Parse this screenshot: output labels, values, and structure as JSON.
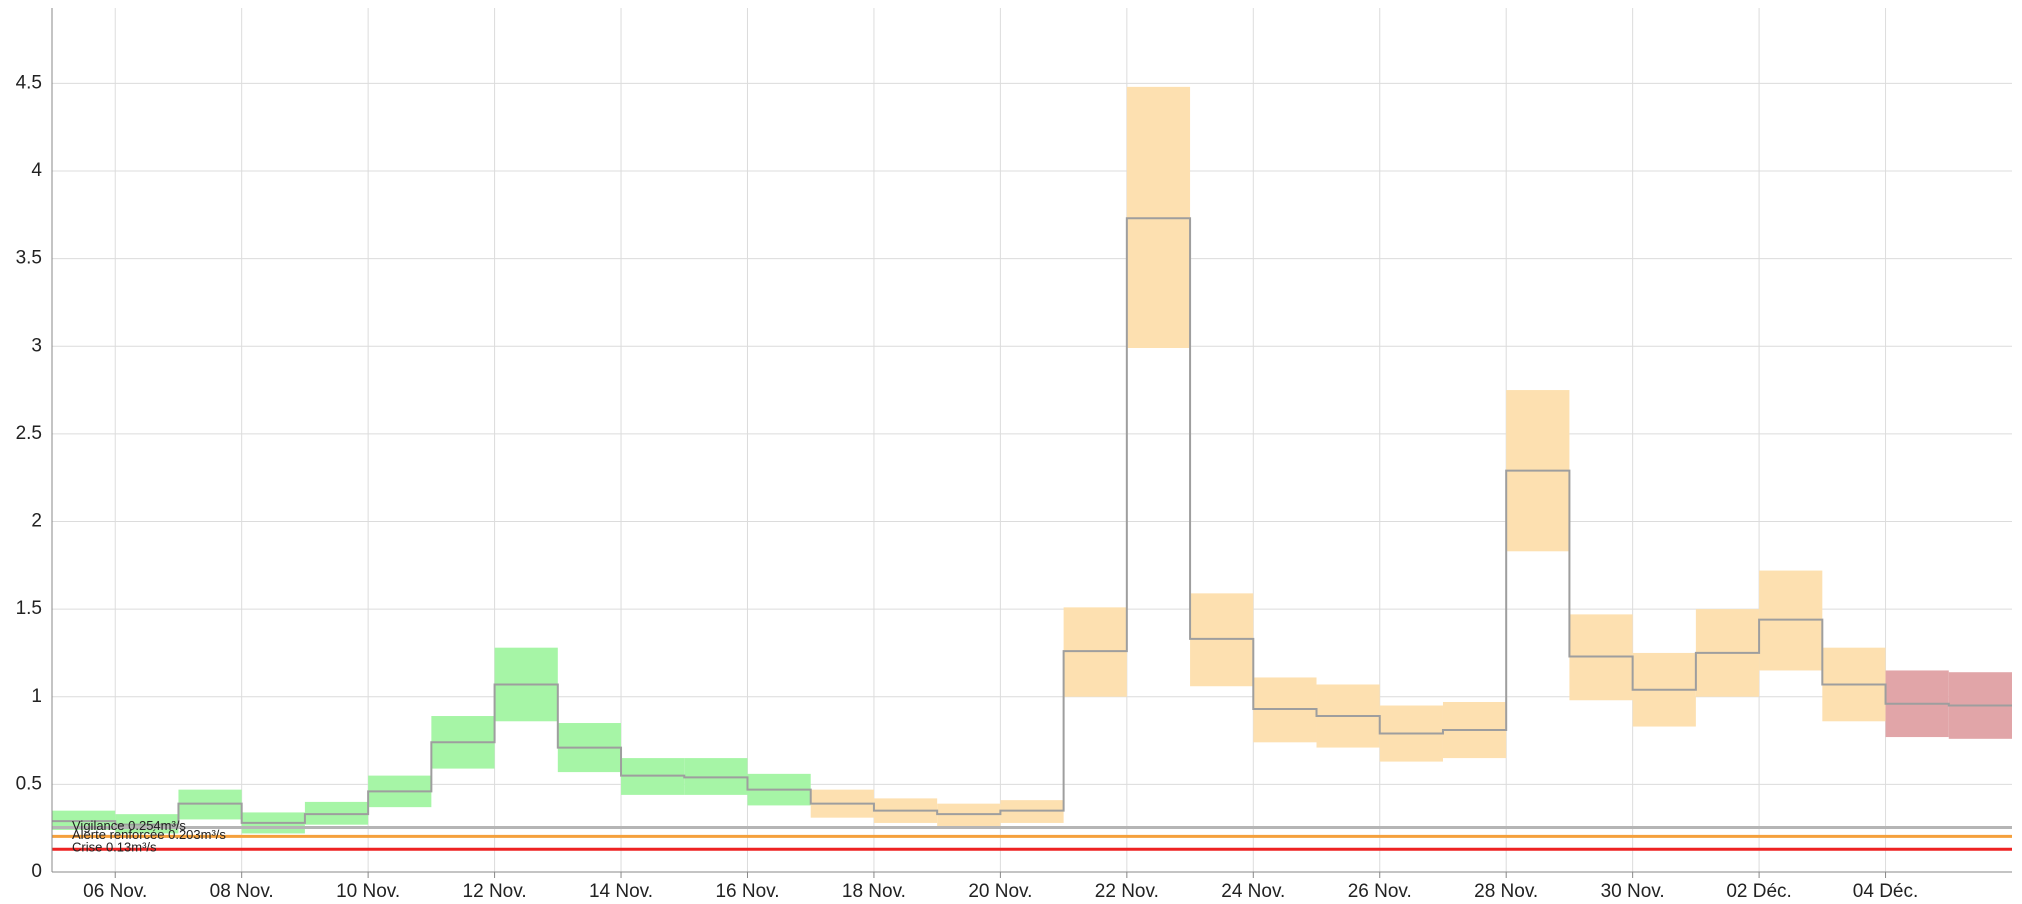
{
  "chart_data": {
    "type": "step-band",
    "xticks": [
      "06 Nov.",
      "08 Nov.",
      "10 Nov.",
      "12 Nov.",
      "14 Nov.",
      "16 Nov.",
      "18 Nov.",
      "20 Nov.",
      "22 Nov.",
      "24 Nov.",
      "26 Nov.",
      "28 Nov.",
      "30 Nov.",
      "02 Déc.",
      "04 Déc."
    ],
    "ylim": [
      0,
      4.93
    ],
    "yticks": [
      0,
      0.5,
      1,
      1.5,
      2,
      2.5,
      3,
      3.5,
      4,
      4.5
    ],
    "grid": true,
    "line_color": "#9e9e9e",
    "values": [
      0.29,
      0.27,
      0.39,
      0.28,
      0.33,
      0.46,
      0.74,
      1.07,
      0.71,
      0.55,
      0.54,
      0.47,
      0.39,
      0.35,
      0.33,
      0.35,
      1.26,
      3.73,
      1.33,
      0.93,
      0.89,
      0.79,
      0.81,
      2.29,
      1.23,
      1.04,
      1.25,
      1.44,
      1.07,
      0.96,
      0.95
    ],
    "low": [
      0.24,
      0.22,
      0.3,
      0.22,
      0.27,
      0.37,
      0.59,
      0.86,
      0.57,
      0.44,
      0.44,
      0.38,
      0.31,
      0.28,
      0.26,
      0.28,
      1.0,
      2.99,
      1.06,
      0.74,
      0.71,
      0.63,
      0.65,
      1.83,
      0.98,
      0.83,
      1.0,
      1.15,
      0.86,
      0.77,
      0.76
    ],
    "high": [
      0.35,
      0.33,
      0.47,
      0.34,
      0.4,
      0.55,
      0.89,
      1.28,
      0.85,
      0.65,
      0.65,
      0.56,
      0.47,
      0.42,
      0.39,
      0.41,
      1.51,
      4.48,
      1.59,
      1.11,
      1.07,
      0.95,
      0.97,
      2.75,
      1.47,
      1.25,
      1.5,
      1.72,
      1.28,
      1.15,
      1.14
    ],
    "band_colors": [
      "#a6f5a6",
      "#a6f5a6",
      "#a6f5a6",
      "#a6f5a6",
      "#a6f5a6",
      "#a6f5a6",
      "#a6f5a6",
      "#a6f5a6",
      "#a6f5a6",
      "#a6f5a6",
      "#a6f5a6",
      "#a6f5a6",
      "#fde0b0",
      "#fde0b0",
      "#fde0b0",
      "#fde0b0",
      "#fde0b0",
      "#fde0b0",
      "#fde0b0",
      "#fde0b0",
      "#fde0b0",
      "#fde0b0",
      "#fde0b0",
      "#fde0b0",
      "#fde0b0",
      "#fde0b0",
      "#fde0b0",
      "#fde0b0",
      "#fde0b0",
      "#e1a5a8",
      "#e1a5a8"
    ],
    "thresholds": [
      {
        "label": "Vigilance 0.254m³/s",
        "value": 0.254,
        "color": "#b5b5b5"
      },
      {
        "label": "Alerte renforcée 0.203m³/s",
        "value": 0.203,
        "color": "#f5a03c"
      },
      {
        "label": "Crise 0.13m³/s",
        "value": 0.13,
        "color": "#ee2222"
      }
    ]
  }
}
